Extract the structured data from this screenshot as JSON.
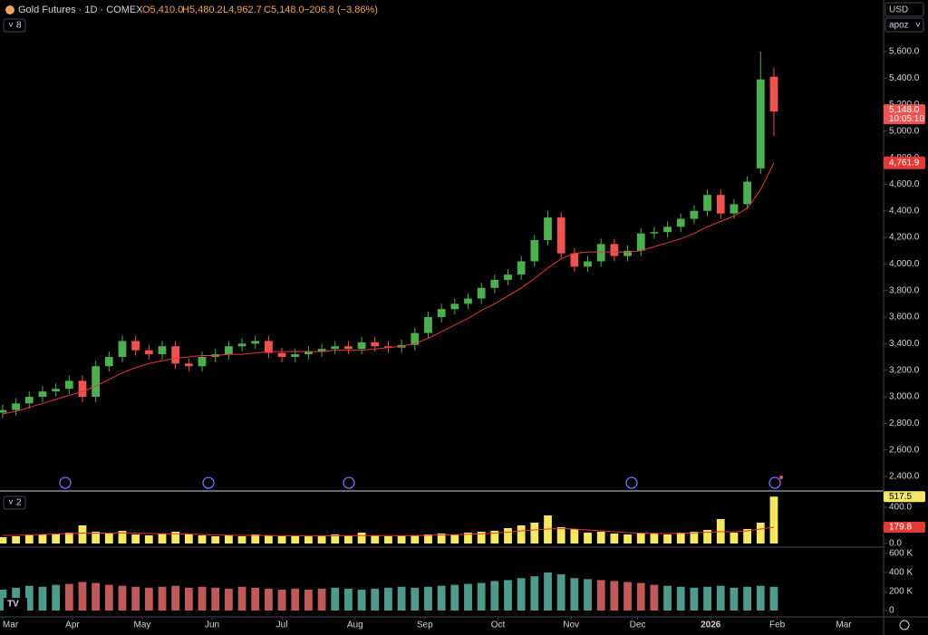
{
  "chart_data": {
    "type": "candlestick",
    "title": "Gold Futures · 1D · COMEX",
    "ohlc_labels": {
      "open": "O5,410.0",
      "high": "H5,480.2",
      "low": "L4,962.7",
      "close": "C5,148.0",
      "change": "−206.8 (−3.86%)"
    },
    "currency": "USD",
    "scale_mode": "apoz",
    "pane_counts": [
      "8",
      "2"
    ],
    "last_price_label": "5,148.0",
    "countdown": "10:05:10",
    "ma_label": "4,761.9",
    "up_color": "#4caf50",
    "down_color": "#ef5350",
    "ma_color": "#e53935",
    "x": [
      0,
      4,
      8,
      12,
      16,
      20,
      24,
      28,
      32,
      36,
      40,
      44,
      48,
      52,
      56,
      60,
      64,
      68,
      72,
      76,
      80,
      84,
      88,
      92,
      96,
      100,
      104,
      108,
      112,
      116,
      120,
      124,
      128,
      132,
      136,
      140,
      144,
      148,
      152,
      156,
      160,
      164,
      168,
      172,
      176,
      180,
      184,
      188,
      192,
      196,
      200,
      204,
      208,
      212,
      216,
      220,
      224,
      228,
      232
    ],
    "xlim": [
      -0.8,
      265
    ],
    "xticks": [
      {
        "value": 0,
        "label": "Mar"
      },
      {
        "value": 21,
        "label": "Apr"
      },
      {
        "value": 42,
        "label": "May"
      },
      {
        "value": 63,
        "label": "Jun"
      },
      {
        "value": 84,
        "label": "Jul"
      },
      {
        "value": 106,
        "label": "Aug"
      },
      {
        "value": 127,
        "label": "Sep"
      },
      {
        "value": 149,
        "label": "Oct"
      },
      {
        "value": 171,
        "label": "Nov"
      },
      {
        "value": 191,
        "label": "Dec"
      },
      {
        "value": 213,
        "label": "2026"
      },
      {
        "value": 233,
        "label": "Feb"
      },
      {
        "value": 253,
        "label": "Mar"
      }
    ],
    "open": [
      2880,
      2900,
      2950,
      3000,
      3040,
      3060,
      3120,
      3000,
      3230,
      3300,
      3420,
      3350,
      3320,
      3380,
      3250,
      3230,
      3300,
      3320,
      3380,
      3400,
      3420,
      3330,
      3300,
      3320,
      3340,
      3360,
      3380,
      3360,
      3410,
      3380,
      3370,
      3390,
      3480,
      3600,
      3660,
      3700,
      3740,
      3820,
      3880,
      3920,
      4020,
      4180,
      4350,
      4080,
      3980,
      4020,
      4150,
      4060,
      4100,
      4230,
      4240,
      4280,
      4340,
      4400,
      4520,
      4380,
      4450,
      4720,
      5410
    ],
    "high": [
      2940,
      2990,
      3040,
      3080,
      3100,
      3160,
      3160,
      3270,
      3340,
      3460,
      3460,
      3390,
      3420,
      3420,
      3290,
      3340,
      3360,
      3420,
      3440,
      3460,
      3460,
      3370,
      3360,
      3380,
      3400,
      3420,
      3420,
      3450,
      3450,
      3420,
      3430,
      3520,
      3640,
      3700,
      3740,
      3780,
      3860,
      3920,
      3960,
      4060,
      4220,
      4400,
      4390,
      4120,
      4060,
      4190,
      4190,
      4140,
      4270,
      4280,
      4320,
      4380,
      4440,
      4560,
      4560,
      4490,
      4660,
      5600,
      5480.2
    ],
    "low": [
      2840,
      2860,
      2910,
      2960,
      3000,
      3020,
      2960,
      2960,
      3190,
      3260,
      3310,
      3280,
      3280,
      3210,
      3190,
      3190,
      3260,
      3280,
      3340,
      3360,
      3290,
      3260,
      3260,
      3280,
      3300,
      3320,
      3320,
      3320,
      3340,
      3330,
      3330,
      3350,
      3440,
      3560,
      3620,
      3660,
      3700,
      3780,
      3840,
      3880,
      3980,
      4140,
      4040,
      3940,
      3940,
      3980,
      4020,
      4020,
      4060,
      4190,
      4200,
      4240,
      4300,
      4360,
      4340,
      4340,
      4410,
      4680,
      4962.7
    ],
    "close": [
      2900,
      2950,
      3000,
      3040,
      3060,
      3120,
      3000,
      3230,
      3300,
      3420,
      3350,
      3320,
      3380,
      3250,
      3230,
      3300,
      3320,
      3380,
      3400,
      3420,
      3330,
      3300,
      3320,
      3340,
      3360,
      3380,
      3360,
      3410,
      3380,
      3370,
      3390,
      3480,
      3600,
      3660,
      3700,
      3740,
      3820,
      3880,
      3920,
      4020,
      4180,
      4350,
      4080,
      3980,
      4020,
      4150,
      4060,
      4100,
      4230,
      4240,
      4280,
      4340,
      4400,
      4520,
      4380,
      4450,
      4620,
      5390,
      5148.0
    ],
    "ma": [
      2870,
      2890,
      2920,
      2950,
      2980,
      3010,
      3040,
      3080,
      3130,
      3180,
      3220,
      3250,
      3270,
      3290,
      3300,
      3310,
      3310,
      3320,
      3320,
      3330,
      3340,
      3340,
      3340,
      3340,
      3340,
      3350,
      3350,
      3350,
      3360,
      3370,
      3380,
      3400,
      3440,
      3490,
      3540,
      3590,
      3650,
      3700,
      3760,
      3820,
      3890,
      3970,
      4040,
      4080,
      4090,
      4090,
      4090,
      4090,
      4100,
      4130,
      4160,
      4190,
      4230,
      4280,
      4320,
      4360,
      4420,
      4560,
      4761.9
    ],
    "ylim": [
      2304,
      5988
    ],
    "yticks": [
      {
        "value": 2400,
        "label": "2,400.0"
      },
      {
        "value": 2600,
        "label": "2,600.0"
      },
      {
        "value": 2800,
        "label": "2,800.0"
      },
      {
        "value": 3000,
        "label": "3,000.0"
      },
      {
        "value": 3200,
        "label": "3,200.0"
      },
      {
        "value": 3400,
        "label": "3,400.0"
      },
      {
        "value": 3600,
        "label": "3,600.0"
      },
      {
        "value": 3800,
        "label": "3,800.0"
      },
      {
        "value": 4000,
        "label": "4,000.0"
      },
      {
        "value": 4200,
        "label": "4,200.0"
      },
      {
        "value": 4400,
        "label": "4,400.0"
      },
      {
        "value": 4600,
        "label": "4,600.0"
      },
      {
        "value": 4800,
        "label": "4,800.0"
      },
      {
        "value": 5000,
        "label": "5,000.0"
      },
      {
        "value": 5200,
        "label": "5,200.0"
      },
      {
        "value": 5400,
        "label": "5,400.0"
      },
      {
        "value": 5600,
        "label": "5,600.0"
      }
    ],
    "volume": {
      "color": "#f5e663",
      "ma_color": "#e53935",
      "values": [
        70,
        80,
        90,
        100,
        110,
        120,
        200,
        130,
        110,
        140,
        100,
        90,
        110,
        130,
        100,
        90,
        80,
        90,
        80,
        100,
        90,
        80,
        85,
        80,
        90,
        100,
        90,
        120,
        90,
        80,
        85,
        90,
        100,
        110,
        100,
        120,
        130,
        140,
        170,
        200,
        230,
        310,
        180,
        160,
        120,
        130,
        110,
        100,
        120,
        110,
        100,
        120,
        130,
        150,
        270,
        120,
        160,
        230,
        517.5
      ],
      "value_labels": {
        "58": "517.5"
      },
      "ma": [
        90,
        90,
        95,
        100,
        105,
        110,
        115,
        115,
        115,
        118,
        115,
        110,
        108,
        108,
        105,
        100,
        95,
        92,
        90,
        90,
        88,
        86,
        85,
        84,
        84,
        85,
        86,
        88,
        88,
        87,
        86,
        87,
        90,
        95,
        98,
        102,
        108,
        115,
        125,
        140,
        150,
        160,
        165,
        160,
        150,
        140,
        130,
        120,
        115,
        112,
        110,
        112,
        118,
        125,
        130,
        130,
        140,
        160,
        179.8
      ],
      "ma_label": "179.8",
      "ylim": [
        -40,
        560
      ],
      "yticks": [
        {
          "value": 0,
          "label": "0.0"
        },
        {
          "value": 400,
          "label": "400.0"
        }
      ]
    },
    "open_interest": {
      "values": [
        220000,
        240000,
        260000,
        250000,
        270000,
        280000,
        300000,
        290000,
        270000,
        260000,
        250000,
        240000,
        250000,
        260000,
        240000,
        250000,
        240000,
        230000,
        250000,
        240000,
        230000,
        220000,
        230000,
        220000,
        230000,
        240000,
        230000,
        220000,
        230000,
        240000,
        250000,
        240000,
        250000,
        260000,
        270000,
        280000,
        290000,
        310000,
        320000,
        340000,
        360000,
        400000,
        380000,
        340000,
        330000,
        320000,
        310000,
        300000,
        290000,
        270000,
        260000,
        250000,
        240000,
        250000,
        260000,
        240000,
        250000,
        260000,
        250000
      ],
      "colors": [
        "#4f9a8a",
        "#4f9a8a",
        "#4f9a8a",
        "#4f9a8a",
        "#4f9a8a",
        "#c05a5a",
        "#c05a5a",
        "#c05a5a",
        "#c05a5a",
        "#c05a5a",
        "#c05a5a",
        "#c05a5a",
        "#c05a5a",
        "#c05a5a",
        "#c05a5a",
        "#c05a5a",
        "#c05a5a",
        "#c05a5a",
        "#c05a5a",
        "#c05a5a",
        "#c05a5a",
        "#c05a5a",
        "#c05a5a",
        "#c05a5a",
        "#c05a5a",
        "#4f9a8a",
        "#4f9a8a",
        "#4f9a8a",
        "#4f9a8a",
        "#4f9a8a",
        "#4f9a8a",
        "#4f9a8a",
        "#4f9a8a",
        "#4f9a8a",
        "#4f9a8a",
        "#4f9a8a",
        "#4f9a8a",
        "#4f9a8a",
        "#4f9a8a",
        "#4f9a8a",
        "#4f9a8a",
        "#4f9a8a",
        "#4f9a8a",
        "#4f9a8a",
        "#4f9a8a",
        "#c05a5a",
        "#c05a5a",
        "#c05a5a",
        "#c05a5a",
        "#c05a5a",
        "#4f9a8a",
        "#4f9a8a",
        "#4f9a8a",
        "#4f9a8a",
        "#4f9a8a",
        "#4f9a8a",
        "#4f9a8a",
        "#4f9a8a",
        "#4f9a8a"
      ],
      "ylim": [
        -57000,
        647000
      ],
      "yticks": [
        {
          "value": 0,
          "label": "0"
        },
        {
          "value": 200000,
          "label": "200 K"
        },
        {
          "value": 400000,
          "label": "400 K"
        },
        {
          "value": 600000,
          "label": "600 K"
        }
      ]
    }
  }
}
